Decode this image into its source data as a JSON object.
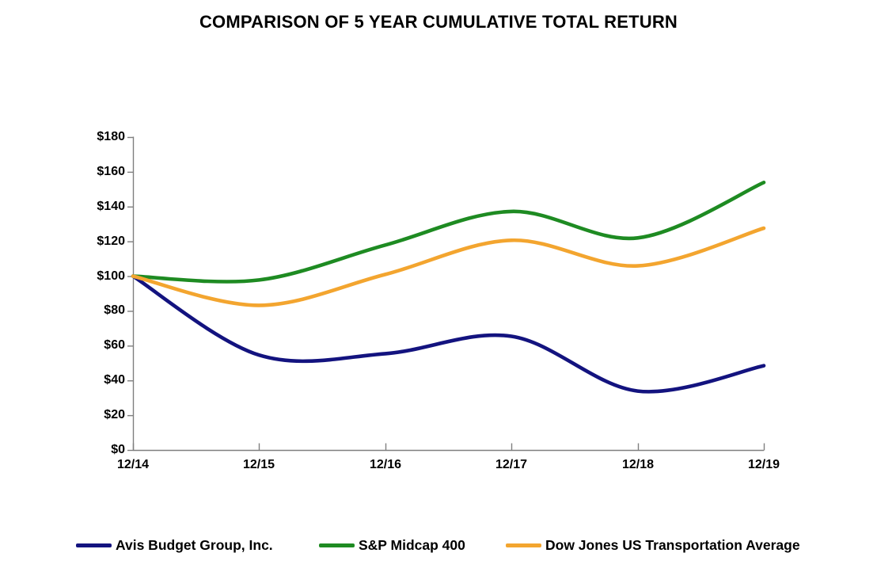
{
  "title": "COMPARISON OF 5 YEAR CUMULATIVE TOTAL RETURN",
  "chart_data": {
    "type": "line",
    "title": "COMPARISON OF 5 YEAR CUMULATIVE TOTAL RETURN",
    "line_style": "smoothed",
    "grid": false,
    "legend_position": "bottom",
    "axis_color": "#7F7F7F",
    "x_labels": [
      "12/14",
      "12/15",
      "12/16",
      "12/17",
      "12/18",
      "12/19"
    ],
    "y_tick_labels": [
      "$180",
      "$160",
      "$140",
      "$120",
      "$100",
      "$80",
      "$60",
      "$40",
      "$20",
      "$0"
    ],
    "ylim": [
      0,
      180
    ],
    "y_tick_interval": 20,
    "y_unit": "$",
    "series": [
      {
        "name": "Avis Budget Group, Inc.",
        "color": "#13137F",
        "values": [
          100,
          54.6,
          55.4,
          65.4,
          33.9,
          48.5
        ]
      },
      {
        "name": "S&P Midcap 400",
        "color": "#1E8B22",
        "values": [
          100,
          97.8,
          117.9,
          137.2,
          122.0,
          153.9
        ]
      },
      {
        "name": "Dow Jones US Transportation Average",
        "color": "#F3A52F",
        "values": [
          100,
          83.2,
          101.0,
          120.6,
          105.9,
          127.6
        ]
      }
    ]
  }
}
